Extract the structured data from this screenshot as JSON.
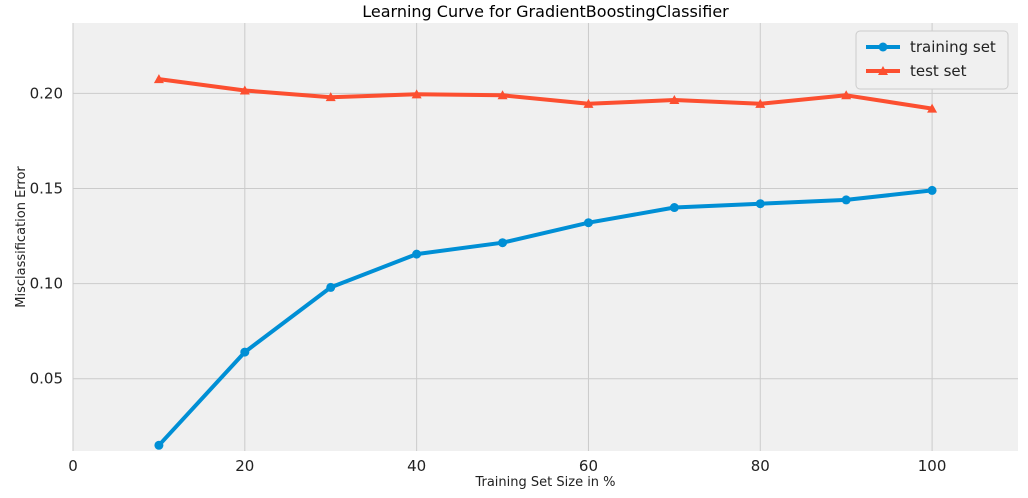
{
  "chart_data": {
    "type": "line",
    "title": "Learning Curve for GradientBoostingClassifier",
    "xlabel": "Training Set Size in %",
    "ylabel": "Misclassification Error",
    "xlim": [
      0,
      110
    ],
    "ylim": [
      0.012,
      0.237
    ],
    "xticks": [
      0,
      20,
      40,
      60,
      80,
      100
    ],
    "yticks": [
      0.05,
      0.1,
      0.15,
      0.2
    ],
    "xtick_labels": [
      "0",
      "20",
      "40",
      "60",
      "80",
      "100"
    ],
    "ytick_labels": [
      "0.05",
      "0.10",
      "0.15",
      "0.20"
    ],
    "grid": true,
    "legend_position": "top-right",
    "x": [
      10,
      20,
      30,
      40,
      50,
      60,
      70,
      80,
      90,
      100
    ],
    "series": [
      {
        "name": "training set",
        "color": "#008fd5",
        "marker": "circle",
        "values": [
          0.015,
          0.064,
          0.098,
          0.1155,
          0.1215,
          0.132,
          0.14,
          0.142,
          0.144,
          0.149
        ]
      },
      {
        "name": "test set",
        "color": "#fc4f30",
        "marker": "triangle",
        "values": [
          0.2075,
          0.2015,
          0.198,
          0.1995,
          0.199,
          0.1945,
          0.1965,
          0.1945,
          0.199,
          0.192
        ]
      }
    ]
  }
}
